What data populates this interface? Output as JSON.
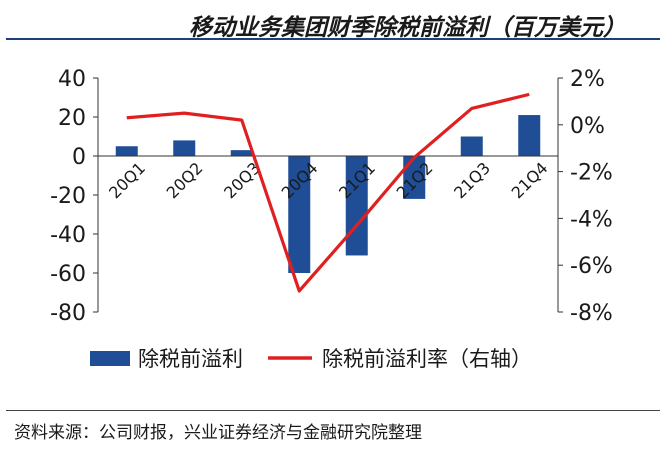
{
  "title": "移动业务集团财季除税前溢利（百万美元）",
  "source": "资料来源：公司财报，兴业证券经济与金融研究院整理",
  "chart_data": {
    "type": "bar",
    "categories": [
      "20Q1",
      "20Q2",
      "20Q3",
      "20Q4",
      "21Q1",
      "21Q2",
      "21Q3",
      "21Q4"
    ],
    "series": [
      {
        "name": "除税前溢利",
        "type": "bar",
        "axis": "left",
        "color": "#1f4e96",
        "values": [
          5,
          8,
          3,
          -60,
          -51,
          -22,
          10,
          21
        ]
      },
      {
        "name": "除税前溢利率（右轴）",
        "type": "line",
        "axis": "right",
        "color": "#e02020",
        "values": [
          0.3,
          0.5,
          0.2,
          -7.1,
          -4.3,
          -1.4,
          0.7,
          1.3
        ]
      }
    ],
    "ylim": [
      -80,
      40
    ],
    "yticks": [
      "40",
      "20",
      "0",
      "-20",
      "-40",
      "-60",
      "-80"
    ],
    "y2lim": [
      -8,
      2
    ],
    "y2ticks": [
      "2%",
      "0%",
      "-2%",
      "-4%",
      "-6%",
      "-8%"
    ],
    "legend_position": "bottom"
  }
}
